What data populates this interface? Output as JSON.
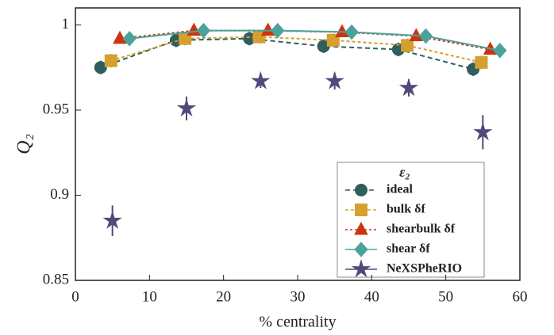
{
  "chart_data": {
    "type": "line",
    "x_label": "% centrality",
    "y_label": "Q₂",
    "legend_title": "ε₂",
    "xlim": [
      0,
      60
    ],
    "ylim": [
      0.85,
      1.01
    ],
    "xticks": [
      0,
      10,
      20,
      30,
      40,
      50,
      60
    ],
    "yticks": [
      0.85,
      0.9,
      0.95,
      1
    ],
    "legend_position": "lower right",
    "series": [
      {
        "name": "ideal",
        "color": "#2e5e5e",
        "marker": "circle",
        "dash": "6,4",
        "x": [
          3.4,
          13.6,
          23.5,
          33.5,
          43.6,
          53.7
        ],
        "values": [
          0.975,
          0.991,
          0.992,
          0.9875,
          0.9856,
          0.974
        ],
        "errors": [
          0.004,
          0.004,
          0.004,
          0.004,
          0.004,
          0.004
        ]
      },
      {
        "name": "bulk δf",
        "color": "#d4a030",
        "marker": "square",
        "dash": "4,3",
        "x": [
          4.8,
          14.8,
          24.8,
          34.8,
          44.8,
          54.8
        ],
        "values": [
          0.979,
          0.992,
          0.993,
          0.991,
          0.988,
          0.978
        ],
        "errors": [
          0.004,
          0.004,
          0.004,
          0.004,
          0.004,
          0.004
        ]
      },
      {
        "name": "shearbulk δf",
        "color": "#cc3311",
        "marker": "triangle",
        "dash": "3,3",
        "x": [
          6,
          16,
          26,
          36,
          46,
          56
        ],
        "values": [
          0.992,
          0.9967,
          0.9967,
          0.9958,
          0.9935,
          0.9856
        ],
        "errors": [
          0.003,
          0.003,
          0.003,
          0.003,
          0.003,
          0.003
        ]
      },
      {
        "name": "shear δf",
        "color": "#4aa39a",
        "marker": "diamond",
        "dash": "",
        "x": [
          7.3,
          17.3,
          27.3,
          37.3,
          47.3,
          57.3
        ],
        "values": [
          0.992,
          0.9967,
          0.9967,
          0.9958,
          0.9935,
          0.985
        ],
        "errors": [
          0.004,
          0.004,
          0.004,
          0.004,
          0.004,
          0.004
        ]
      },
      {
        "name": "NeXSPheRIO",
        "color": "#4f4a7a",
        "marker": "star",
        "dash": "none",
        "x": [
          5,
          15,
          25,
          35,
          45,
          55
        ],
        "values": [
          0.885,
          0.951,
          0.967,
          0.967,
          0.963,
          0.937
        ],
        "errors": [
          0.009,
          0.007,
          0.004,
          0.005,
          0.005,
          0.01
        ]
      }
    ]
  }
}
